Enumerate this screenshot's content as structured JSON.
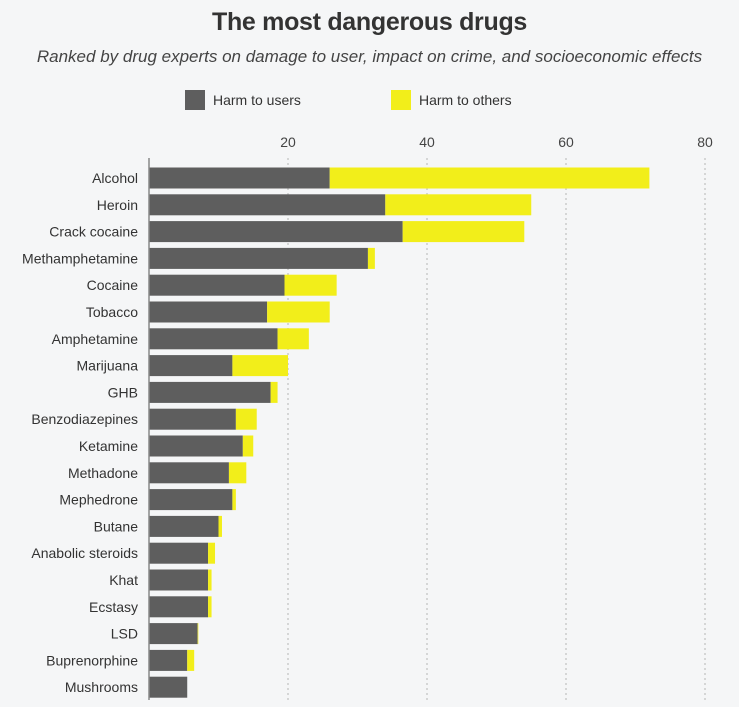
{
  "title": "The most dangerous drugs",
  "subtitle": "Ranked by drug experts on damage to user, impact on crime, and socioeconomic effects",
  "colors": {
    "users": "#5e5e5e",
    "others": "#f2ee1a",
    "grid": "#b5b5b5",
    "axis": "#888888"
  },
  "legend": {
    "placement": "top",
    "users_label": "Harm to users",
    "others_label": "Harm to others"
  },
  "chart_data": {
    "type": "bar",
    "orientation": "horizontal",
    "stacked": true,
    "xlim": [
      0,
      80
    ],
    "xticks": [
      20,
      40,
      60,
      80
    ],
    "grid": true,
    "categories": [
      "Alcohol",
      "Heroin",
      "Crack cocaine",
      "Methamphetamine",
      "Cocaine",
      "Tobacco",
      "Amphetamine",
      "Marijuana",
      "GHB",
      "Benzodiazepines",
      "Ketamine",
      "Methadone",
      "Mephedrone",
      "Butane",
      "Anabolic steroids",
      "Khat",
      "Ecstasy",
      "LSD",
      "Buprenorphine",
      "Mushrooms"
    ],
    "series": [
      {
        "name": "Harm to users",
        "values": [
          26,
          34,
          36.5,
          31.5,
          19.5,
          17,
          18.5,
          12,
          17.5,
          12.5,
          13.5,
          11.5,
          12,
          10,
          8.5,
          8.5,
          8.5,
          7,
          5.5,
          5.5
        ]
      },
      {
        "name": "Harm to others",
        "values": [
          46,
          21,
          17.5,
          1,
          7.5,
          9,
          4.5,
          8,
          1,
          3,
          1.5,
          2.5,
          0.5,
          0.5,
          1,
          0.5,
          0.5,
          0.1,
          1,
          0
        ]
      }
    ]
  }
}
